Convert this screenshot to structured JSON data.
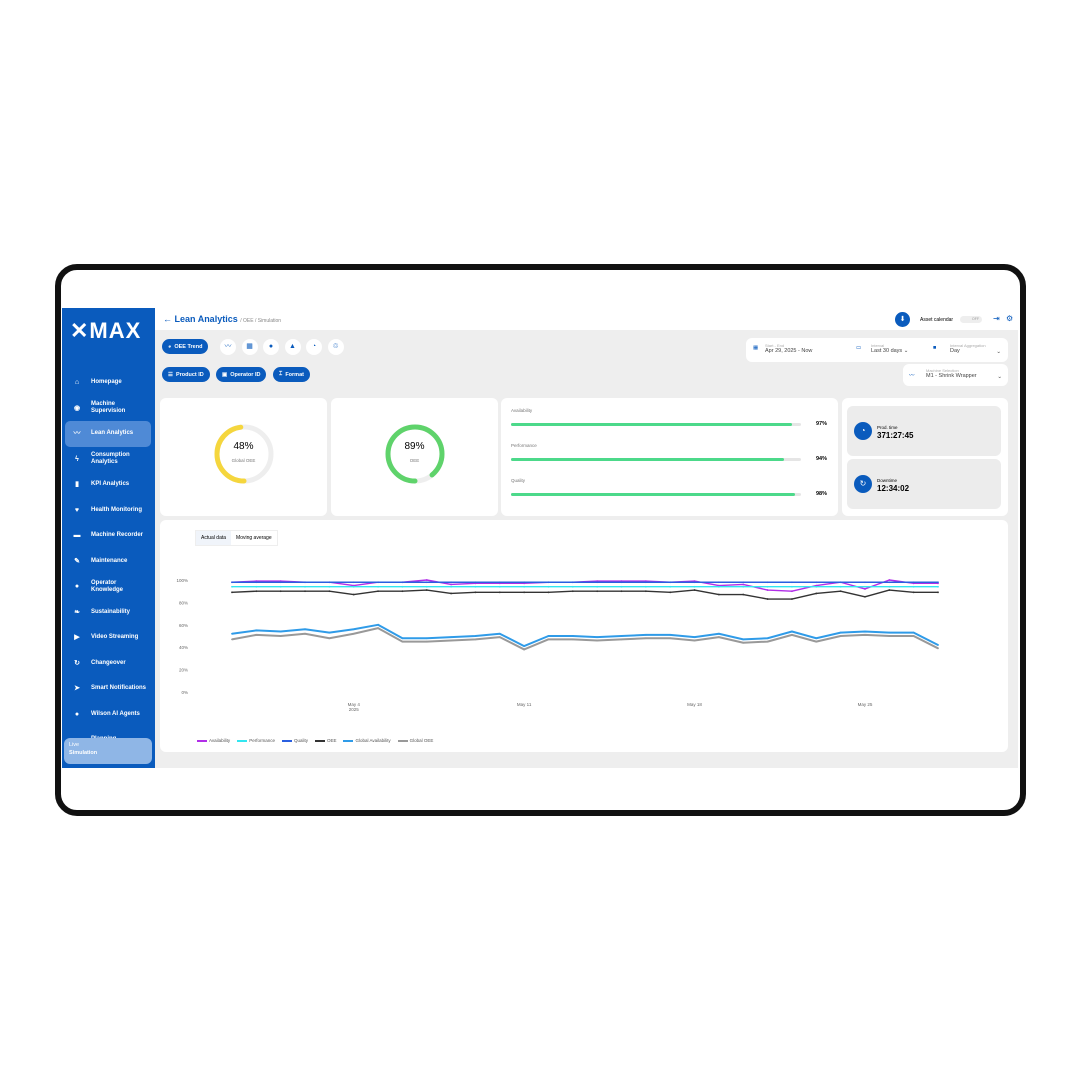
{
  "app": {
    "logo": "✕MAX",
    "title": "Lean Analytics",
    "breadcrumb": "/ OEE / Simulation"
  },
  "sidebar": {
    "items": [
      {
        "label": "Homepage",
        "icon": "home-icon",
        "glyph": "⌂"
      },
      {
        "label": "Machine Supervision",
        "icon": "eye-icon",
        "glyph": "◉"
      },
      {
        "label": "Lean Analytics",
        "icon": "trend-icon",
        "glyph": "〰",
        "active": true
      },
      {
        "label": "Consumption Analytics",
        "icon": "bolt-icon",
        "glyph": "ϟ"
      },
      {
        "label": "KPI Analytics",
        "icon": "bar-chart-icon",
        "glyph": "▮"
      },
      {
        "label": "Health Monitoring",
        "icon": "heart-icon",
        "glyph": "♥"
      },
      {
        "label": "Machine Recorder",
        "icon": "recorder-icon",
        "glyph": "▬"
      },
      {
        "label": "Maintenance",
        "icon": "wrench-icon",
        "glyph": "✎"
      },
      {
        "label": "Operator Knowledge",
        "icon": "knowledge-icon",
        "glyph": "●"
      },
      {
        "label": "Sustainability",
        "icon": "leaf-icon",
        "glyph": "❧"
      },
      {
        "label": "Video Streaming",
        "icon": "play-icon",
        "glyph": "▶"
      },
      {
        "label": "Changeover",
        "icon": "refresh-icon",
        "glyph": "↻"
      },
      {
        "label": "Smart Notifications",
        "icon": "send-icon",
        "glyph": "➤"
      },
      {
        "label": "Wilson AI Agents",
        "icon": "robot-icon",
        "glyph": "●"
      },
      {
        "label": "Planning",
        "icon": "calendar-icon",
        "glyph": "▬"
      }
    ],
    "mode_label": "Live",
    "mode_value": "Simulation"
  },
  "header": {
    "asset_calendar": "Asset calendar",
    "toggle": "OFF"
  },
  "toolbar": {
    "primary": "OEE Trend",
    "icons": [
      "line-chart-icon",
      "grid-icon",
      "circle-icon",
      "triangle-icon",
      "pie-icon",
      "recycle-icon"
    ],
    "glyphs": [
      "〰",
      "▦",
      "●",
      "▲",
      "◔",
      "♲"
    ],
    "filters": [
      "Product ID",
      "Operator ID",
      "Format"
    ]
  },
  "fields": {
    "range": {
      "label": "Start - End",
      "value": "Apr 29, 2025 - Now"
    },
    "interval": {
      "label": "Interval",
      "value": "Last 30 days"
    },
    "aggregation": {
      "label": "Interval Aggregation",
      "value": "Day"
    },
    "machine": {
      "label": "Machine Selection",
      "value": "M1 - Shrink Wrapper"
    }
  },
  "kpis": {
    "global_oee": {
      "value": "48%",
      "label": "Global OEE",
      "pct": 48,
      "color": "#f5d63d"
    },
    "oee": {
      "value": "89%",
      "label": "OEE",
      "pct": 89,
      "color": "#5fd36b"
    },
    "bars": [
      {
        "label": "Availability",
        "value": "97%",
        "pct": 97
      },
      {
        "label": "Performance",
        "value": "94%",
        "pct": 94
      },
      {
        "label": "Quality",
        "value": "98%",
        "pct": 98
      }
    ],
    "prod_time": {
      "label": "Prod. time",
      "value": "371:27:45"
    },
    "downtime": {
      "label": "Downtime",
      "value": "12:34:02"
    }
  },
  "chart_tabs": [
    "Actual data",
    "Moving average"
  ],
  "chart_data": {
    "type": "line",
    "x_start": "2025-04-29",
    "x_end": "2025-05-28",
    "x_tick_labels": [
      "May 4\n2025",
      "May 11",
      "May 18",
      "May 25"
    ],
    "x_ticks": [
      "2025-05-04",
      "2025-05-11",
      "2025-05-18",
      "2025-05-25"
    ],
    "y_tick_labels": [
      "100%",
      "80%",
      "60%",
      "40%",
      "20%",
      "0%"
    ],
    "ylim": [
      0,
      100
    ],
    "legend": "bottom-left",
    "series": [
      {
        "name": "Availability",
        "color": "#b12ee8",
        "values": [
          98,
          99,
          99,
          98,
          98,
          95,
          98,
          98,
          100,
          96,
          97,
          97,
          97,
          98,
          98,
          99,
          99,
          99,
          98,
          99,
          95,
          96,
          91,
          90,
          95,
          98,
          92,
          100,
          97,
          97
        ]
      },
      {
        "name": "Performance",
        "color": "#33e6f0",
        "values": [
          94,
          94,
          94,
          94,
          94,
          94,
          94,
          94,
          94,
          94,
          94,
          94,
          94,
          94,
          94,
          94,
          94,
          94,
          94,
          94,
          94,
          94,
          94,
          94,
          94,
          94,
          94,
          94,
          94,
          94
        ]
      },
      {
        "name": "Quality",
        "color": "#2a5fe0",
        "values": [
          98,
          98,
          98,
          98,
          98,
          98,
          98,
          98,
          98,
          98,
          98,
          98,
          98,
          98,
          98,
          98,
          98,
          98,
          98,
          98,
          98,
          98,
          98,
          98,
          98,
          98,
          98,
          98,
          98,
          98
        ]
      },
      {
        "name": "OEE",
        "color": "#333333",
        "values": [
          89,
          90,
          90,
          90,
          90,
          87,
          90,
          90,
          91,
          88,
          89,
          89,
          89,
          89,
          90,
          90,
          90,
          90,
          89,
          91,
          87,
          87,
          83,
          83,
          88,
          90,
          85,
          91,
          89,
          89
        ]
      },
      {
        "name": "Global Availability",
        "color": "#2f9be8",
        "values": [
          52,
          55,
          54,
          56,
          53,
          56,
          60,
          48,
          48,
          49,
          50,
          52,
          41,
          50,
          50,
          49,
          50,
          51,
          51,
          49,
          52,
          47,
          48,
          54,
          48,
          53,
          54,
          53,
          53,
          42
        ]
      },
      {
        "name": "Global OEE",
        "color": "#999999",
        "values": [
          47,
          51,
          50,
          52,
          48,
          52,
          57,
          45,
          45,
          46,
          47,
          49,
          38,
          47,
          47,
          46,
          47,
          48,
          48,
          46,
          49,
          44,
          45,
          51,
          45,
          50,
          51,
          50,
          50,
          39
        ]
      }
    ]
  }
}
